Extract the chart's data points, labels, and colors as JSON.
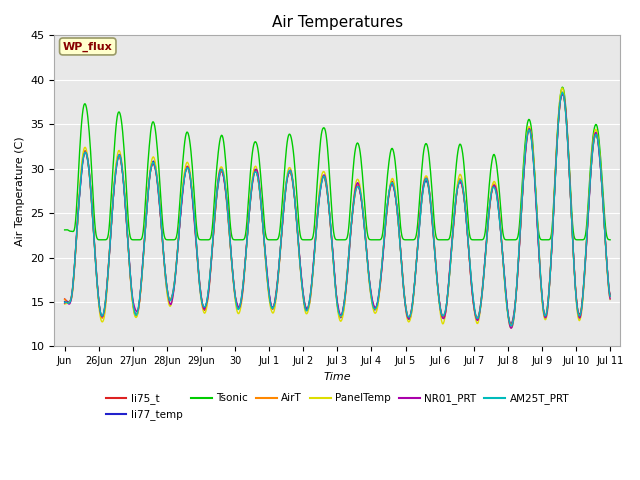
{
  "title": "Air Temperatures",
  "xlabel": "Time",
  "ylabel": "Air Temperature (C)",
  "ylim": [
    10,
    45
  ],
  "background_color": "#ffffff",
  "plot_bg_color": "#e8e8e8",
  "annotation_text": "WP_flux",
  "annotation_facecolor": "#ffffcc",
  "annotation_edgecolor": "#999966",
  "annotation_textcolor": "#880000",
  "series_colors": {
    "li75_t": "#dd2222",
    "li77_temp": "#2222cc",
    "Tsonic": "#00cc00",
    "AirT": "#ff8800",
    "PanelTemp": "#dddd00",
    "NR01_PRT": "#aa00aa",
    "AM25T_PRT": "#00bbbb"
  },
  "xtick_labels": [
    "Jun",
    "26Jun",
    "27Jun",
    "28Jun",
    "29Jun",
    "30",
    "Jul 1",
    "Jul 2",
    "Jul 3",
    "Jul 4",
    "Jul 5",
    "Jul 6",
    "Jul 7",
    "Jul 8",
    "Jul 9",
    "Jul 10",
    "Jul 11"
  ],
  "xtick_positions": [
    0,
    1,
    2,
    3,
    4,
    5,
    6,
    7,
    8,
    9,
    10,
    11,
    12,
    13,
    14,
    15,
    16
  ],
  "ytick_positions": [
    10,
    15,
    20,
    25,
    30,
    35,
    40,
    45
  ],
  "grid_color": "#ffffff"
}
